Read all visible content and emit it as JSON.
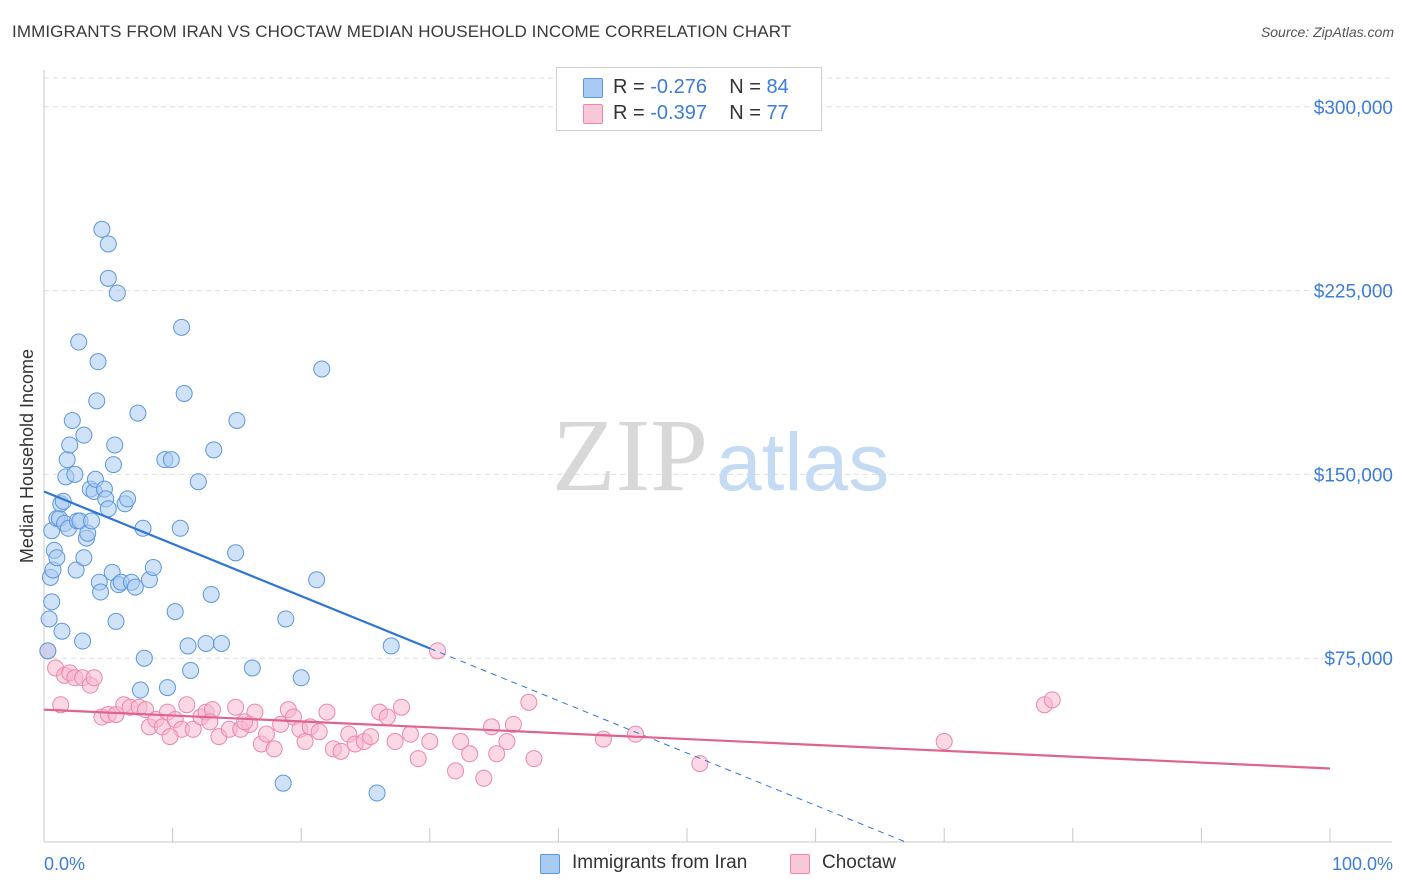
{
  "header": {
    "title": "IMMIGRANTS FROM IRAN VS CHOCTAW MEDIAN HOUSEHOLD INCOME CORRELATION CHART",
    "source": "Source: ZipAtlas.com"
  },
  "legend": {
    "items": [
      {
        "r_label": "R =",
        "r_value": "-0.276",
        "n_label": "N =",
        "n_value": "84"
      },
      {
        "r_label": "R =",
        "r_value": "-0.397",
        "n_label": "N =",
        "n_value": "77"
      }
    ],
    "series_names": [
      "Immigrants from Iran",
      "Choctaw"
    ]
  },
  "watermark": {
    "zip": "ZIP",
    "atlas": "atlas"
  },
  "colors": {
    "iran_fill": "#a9cbf3",
    "iran_stroke": "#5b97dc",
    "iran_line": "#2f76d2",
    "choctaw_fill": "#f8b8cf",
    "choctaw_stroke": "#ee86aa",
    "choctaw_line": "#e0638f",
    "grid": "#dedede",
    "axis_label": "#3b7dd8"
  },
  "chart_data": {
    "type": "scatter",
    "title": "IMMIGRANTS FROM IRAN VS CHOCTAW MEDIAN HOUSEHOLD INCOME CORRELATION CHART",
    "xlabel": "",
    "ylabel": "Median Household Income",
    "xlim": [
      0,
      100
    ],
    "ylim": [
      0,
      315000
    ],
    "x_tick_labels": [
      "0.0%",
      "100.0%"
    ],
    "y_ticks": [
      75000,
      150000,
      225000,
      300000
    ],
    "y_tick_labels": [
      "$75,000",
      "$150,000",
      "$225,000",
      "$300,000"
    ],
    "grid": true,
    "legend_position": "top-center",
    "series": [
      {
        "name": "Immigrants from Iran",
        "r": -0.276,
        "n": 84,
        "trend": {
          "x0": 0,
          "y0": 143000,
          "x1": 30,
          "y1": 79000,
          "dashed_to_x": 67,
          "dashed_to_y": 0
        },
        "points": [
          [
            0.3,
            78000
          ],
          [
            0.4,
            91000
          ],
          [
            0.6,
            98000
          ],
          [
            0.5,
            108000
          ],
          [
            0.7,
            111000
          ],
          [
            0.6,
            127000
          ],
          [
            0.8,
            119000
          ],
          [
            1.0,
            116000
          ],
          [
            1.0,
            132000
          ],
          [
            1.2,
            132000
          ],
          [
            1.3,
            138000
          ],
          [
            1.5,
            139000
          ],
          [
            1.4,
            86000
          ],
          [
            1.6,
            130000
          ],
          [
            1.7,
            149000
          ],
          [
            1.8,
            156000
          ],
          [
            2.0,
            162000
          ],
          [
            1.9,
            128000
          ],
          [
            2.2,
            172000
          ],
          [
            2.4,
            150000
          ],
          [
            2.5,
            111000
          ],
          [
            2.6,
            131000
          ],
          [
            2.7,
            204000
          ],
          [
            2.8,
            131000
          ],
          [
            3.0,
            82000
          ],
          [
            3.1,
            166000
          ],
          [
            3.1,
            116000
          ],
          [
            3.3,
            124000
          ],
          [
            3.4,
            126000
          ],
          [
            3.6,
            144000
          ],
          [
            3.7,
            131000
          ],
          [
            3.9,
            143000
          ],
          [
            4.0,
            148000
          ],
          [
            4.1,
            180000
          ],
          [
            4.2,
            196000
          ],
          [
            4.3,
            106000
          ],
          [
            4.4,
            102000
          ],
          [
            4.5,
            250000
          ],
          [
            4.7,
            144000
          ],
          [
            4.8,
            140000
          ],
          [
            5.0,
            230000
          ],
          [
            5.0,
            244000
          ],
          [
            5.0,
            136000
          ],
          [
            5.3,
            110000
          ],
          [
            5.4,
            154000
          ],
          [
            5.5,
            162000
          ],
          [
            5.6,
            90000
          ],
          [
            5.7,
            224000
          ],
          [
            5.8,
            105000
          ],
          [
            6.0,
            106000
          ],
          [
            6.3,
            138000
          ],
          [
            6.5,
            140000
          ],
          [
            6.8,
            106000
          ],
          [
            7.1,
            104000
          ],
          [
            7.3,
            175000
          ],
          [
            7.5,
            62000
          ],
          [
            7.7,
            128000
          ],
          [
            7.8,
            75000
          ],
          [
            8.2,
            107000
          ],
          [
            8.5,
            112000
          ],
          [
            9.4,
            156000
          ],
          [
            9.6,
            63000
          ],
          [
            9.9,
            156000
          ],
          [
            10.2,
            94000
          ],
          [
            10.6,
            128000
          ],
          [
            10.7,
            210000
          ],
          [
            10.9,
            183000
          ],
          [
            11.2,
            80000
          ],
          [
            11.4,
            70000
          ],
          [
            12.0,
            147000
          ],
          [
            12.6,
            81000
          ],
          [
            13.0,
            101000
          ],
          [
            13.2,
            160000
          ],
          [
            13.8,
            81000
          ],
          [
            14.9,
            118000
          ],
          [
            15.0,
            172000
          ],
          [
            16.2,
            71000
          ],
          [
            18.6,
            24000
          ],
          [
            18.8,
            91000
          ],
          [
            20.0,
            67000
          ],
          [
            21.2,
            107000
          ],
          [
            21.6,
            193000
          ],
          [
            25.9,
            20000
          ],
          [
            27.0,
            80000
          ]
        ]
      },
      {
        "name": "Choctaw",
        "r": -0.397,
        "n": 77,
        "trend": {
          "x0": 0,
          "y0": 54000,
          "x1": 100,
          "y1": 30000
        },
        "points": [
          [
            0.3,
            78000
          ],
          [
            0.9,
            71000
          ],
          [
            1.3,
            56000
          ],
          [
            1.6,
            68000
          ],
          [
            2.0,
            69000
          ],
          [
            2.4,
            67000
          ],
          [
            3.0,
            67000
          ],
          [
            3.6,
            64000
          ],
          [
            3.9,
            67000
          ],
          [
            4.5,
            51000
          ],
          [
            5.0,
            52000
          ],
          [
            5.6,
            52000
          ],
          [
            6.2,
            56000
          ],
          [
            6.7,
            55000
          ],
          [
            7.4,
            55000
          ],
          [
            7.9,
            54000
          ],
          [
            8.2,
            47000
          ],
          [
            8.7,
            50000
          ],
          [
            9.2,
            47000
          ],
          [
            9.6,
            53000
          ],
          [
            10.2,
            50000
          ],
          [
            10.7,
            46000
          ],
          [
            11.1,
            56000
          ],
          [
            11.6,
            46000
          ],
          [
            12.2,
            51000
          ],
          [
            12.6,
            53000
          ],
          [
            13.1,
            54000
          ],
          [
            13.6,
            43000
          ],
          [
            14.4,
            46000
          ],
          [
            14.9,
            55000
          ],
          [
            15.3,
            46000
          ],
          [
            16.0,
            48000
          ],
          [
            16.4,
            53000
          ],
          [
            16.9,
            40000
          ],
          [
            17.3,
            44000
          ],
          [
            17.9,
            38000
          ],
          [
            18.4,
            48000
          ],
          [
            19.0,
            54000
          ],
          [
            19.4,
            51000
          ],
          [
            19.9,
            46000
          ],
          [
            20.3,
            41000
          ],
          [
            20.7,
            47000
          ],
          [
            21.4,
            45000
          ],
          [
            22.0,
            53000
          ],
          [
            22.5,
            38000
          ],
          [
            23.1,
            37000
          ],
          [
            23.7,
            44000
          ],
          [
            24.2,
            40000
          ],
          [
            24.9,
            41000
          ],
          [
            25.4,
            43000
          ],
          [
            26.1,
            53000
          ],
          [
            26.7,
            51000
          ],
          [
            27.3,
            41000
          ],
          [
            27.8,
            55000
          ],
          [
            28.5,
            44000
          ],
          [
            29.1,
            34000
          ],
          [
            30.0,
            41000
          ],
          [
            30.6,
            78000
          ],
          [
            32.0,
            29000
          ],
          [
            32.4,
            41000
          ],
          [
            33.1,
            36000
          ],
          [
            34.2,
            26000
          ],
          [
            34.8,
            47000
          ],
          [
            35.2,
            36000
          ],
          [
            36.0,
            41000
          ],
          [
            36.5,
            48000
          ],
          [
            37.7,
            57000
          ],
          [
            38.1,
            34000
          ],
          [
            43.5,
            42000
          ],
          [
            46.0,
            44000
          ],
          [
            51.0,
            32000
          ],
          [
            70.0,
            41000
          ],
          [
            77.8,
            56000
          ],
          [
            78.4,
            58000
          ],
          [
            15.6,
            49000
          ],
          [
            9.8,
            43000
          ],
          [
            12.9,
            49000
          ]
        ]
      }
    ]
  }
}
